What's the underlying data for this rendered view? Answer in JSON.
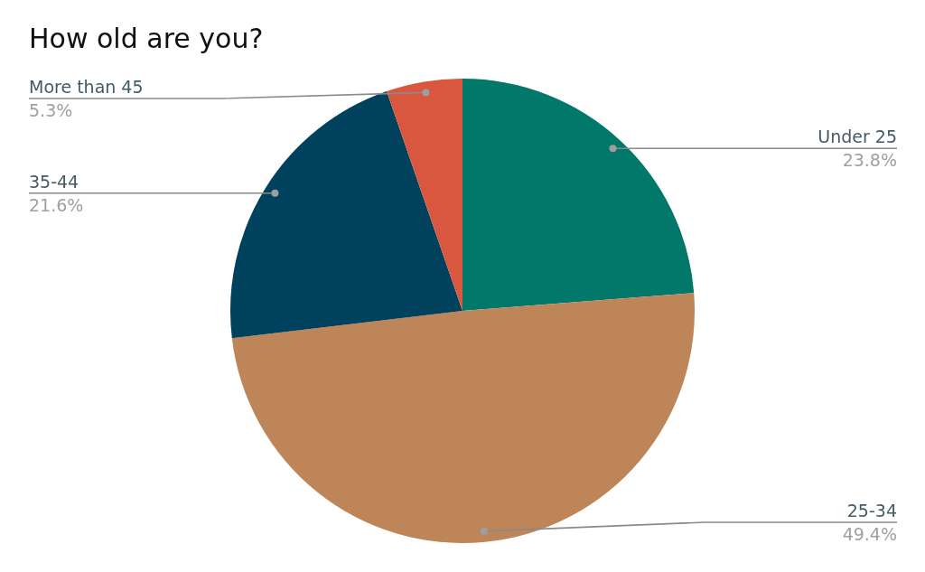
{
  "chart_data": {
    "type": "pie",
    "title": "How old are you?",
    "categories": [
      "Under 25",
      "25-34",
      "35-44",
      "More than 45"
    ],
    "values": [
      23.8,
      49.4,
      21.6,
      5.3
    ],
    "colors": [
      "#01786a",
      "#be8558",
      "#00425e",
      "#da573f"
    ],
    "value_labels": [
      "23.8%",
      "49.4%",
      "21.6%",
      "5.3%"
    ]
  }
}
